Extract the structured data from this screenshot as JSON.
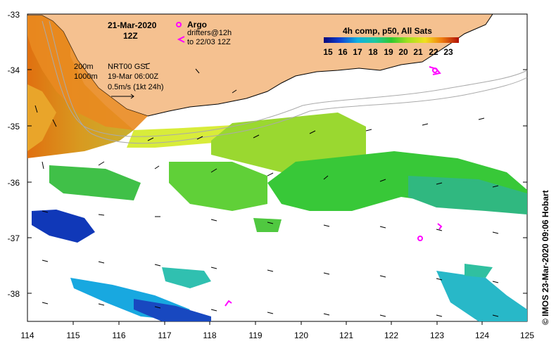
{
  "map": {
    "date": "21-Mar-2020",
    "time": "12Z",
    "legend_argo": "Argo",
    "legend_drifters_line1": "drifters@12h",
    "legend_drifters_line2": "to 22/03 12Z",
    "isobath_200": "200m",
    "isobath_1000": "1000m",
    "altimetry_product": "NRT00 GSL",
    "altimetry_date": "19-Mar 06:00Z",
    "velocity_scale": "0.5m/s (1kt 24h)",
    "colorbar_title": "4h comp, p50, All Sats",
    "colorbar_ticks": [
      "15",
      "16",
      "17",
      "18",
      "19",
      "20",
      "21",
      "22",
      "23"
    ],
    "credit": "© IMOS 23-Mar-2020 09:06 Hobart",
    "lon_labels": [
      "114",
      "115",
      "116",
      "117",
      "118",
      "119",
      "120",
      "121",
      "122",
      "123",
      "124",
      "125"
    ],
    "lat_labels": [
      "-33",
      "-34",
      "-35",
      "-36",
      "-37",
      "-38"
    ],
    "lon_range": [
      114,
      125
    ],
    "lat_range": [
      -38.5,
      -33
    ],
    "sst_range_c": [
      15,
      23
    ],
    "colors": {
      "land": "#f5c190",
      "coast_warm": "#e87a14",
      "argo": "#ff00ff",
      "isobath": "#aaaaaa"
    }
  }
}
